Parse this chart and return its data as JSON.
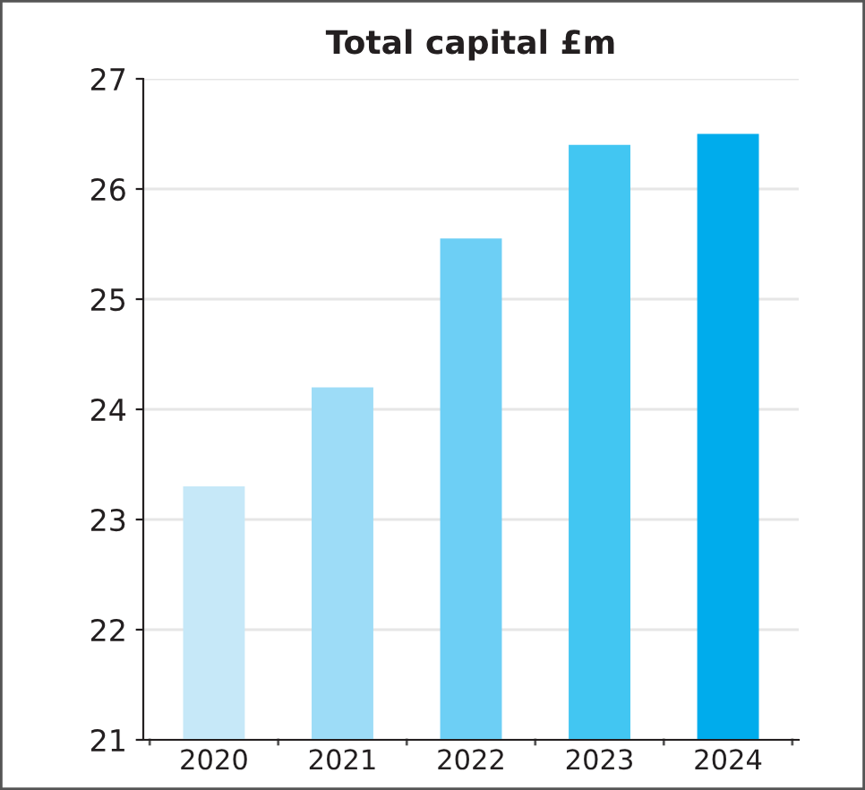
{
  "chart_data": {
    "type": "bar",
    "title": "Total capital £m",
    "categories": [
      "2020",
      "2021",
      "2022",
      "2023",
      "2024"
    ],
    "values": [
      23.3,
      24.2,
      25.55,
      26.4,
      26.5
    ],
    "colors": [
      "#c6e8f8",
      "#9ddcf7",
      "#6dcff5",
      "#42c6f2",
      "#00acec"
    ],
    "ylim": [
      21,
      27
    ],
    "yticks": [
      21,
      22,
      23,
      24,
      25,
      26,
      27
    ],
    "grid": "y",
    "legend": false
  }
}
